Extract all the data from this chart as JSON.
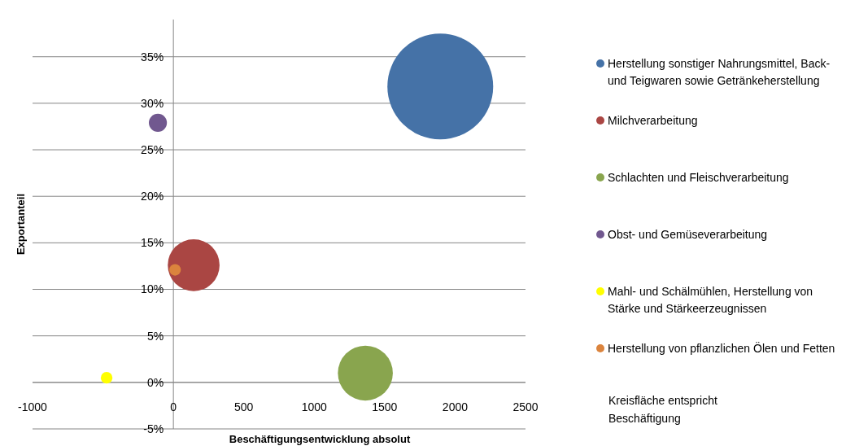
{
  "chart_data": {
    "type": "bubble",
    "xlabel": "Beschäftigungsentwicklung absolut",
    "ylabel": "Exportanteil",
    "xlim": [
      -1000,
      2500
    ],
    "xticks": [
      -1000,
      0,
      500,
      1000,
      1500,
      2000,
      2500
    ],
    "ylim": [
      -5,
      39
    ],
    "yticks": [
      {
        "value": -5,
        "label": "-5%"
      },
      {
        "value": 0,
        "label": "0%"
      },
      {
        "value": 5,
        "label": "5%"
      },
      {
        "value": 10,
        "label": "10%"
      },
      {
        "value": 15,
        "label": "15%"
      },
      {
        "value": 20,
        "label": "20%"
      },
      {
        "value": 25,
        "label": "25%"
      },
      {
        "value": 30,
        "label": "30%"
      },
      {
        "value": 35,
        "label": "35%"
      }
    ],
    "grid": "y",
    "legend": "right",
    "series": [
      {
        "name": "Herstellung sonstiger Nahrungsmittel, Back- und Teigwaren sowie Getränkeherstellung",
        "color": "#4572a7",
        "x": [
          1895
        ],
        "values": [
          31.8
        ],
        "sizes": [
          1
        ]
      },
      {
        "name": "Milchverarbeitung",
        "color": "#aa4643",
        "x": [
          144
        ],
        "values": [
          12.6
        ],
        "sizes": [
          0.24
        ]
      },
      {
        "name": "Schlachten und Fleischverarbeitung",
        "color": "#89a54e",
        "x": [
          1363
        ],
        "values": [
          1.0
        ],
        "sizes": [
          0.27
        ]
      },
      {
        "name": "Obst- und Gemüseverarbeitung",
        "color": "#71588f",
        "x": [
          -110
        ],
        "values": [
          27.9
        ],
        "sizes": [
          0.029
        ]
      },
      {
        "name": "Mahl- und Schälmühlen, Herstellung von Stärke und Stärkeerzeugnissen",
        "color": "#ffff00",
        "x": [
          -474
        ],
        "values": [
          0.5
        ],
        "sizes": [
          0.012
        ]
      },
      {
        "name": "Herstellung von pflanzlichen Ölen und Fetten",
        "color": "#db843d",
        "x": [
          12
        ],
        "values": [
          12.1
        ],
        "sizes": [
          0.012
        ]
      }
    ],
    "annotations": [
      "Kreisfläche entspricht Beschäftigung"
    ]
  }
}
